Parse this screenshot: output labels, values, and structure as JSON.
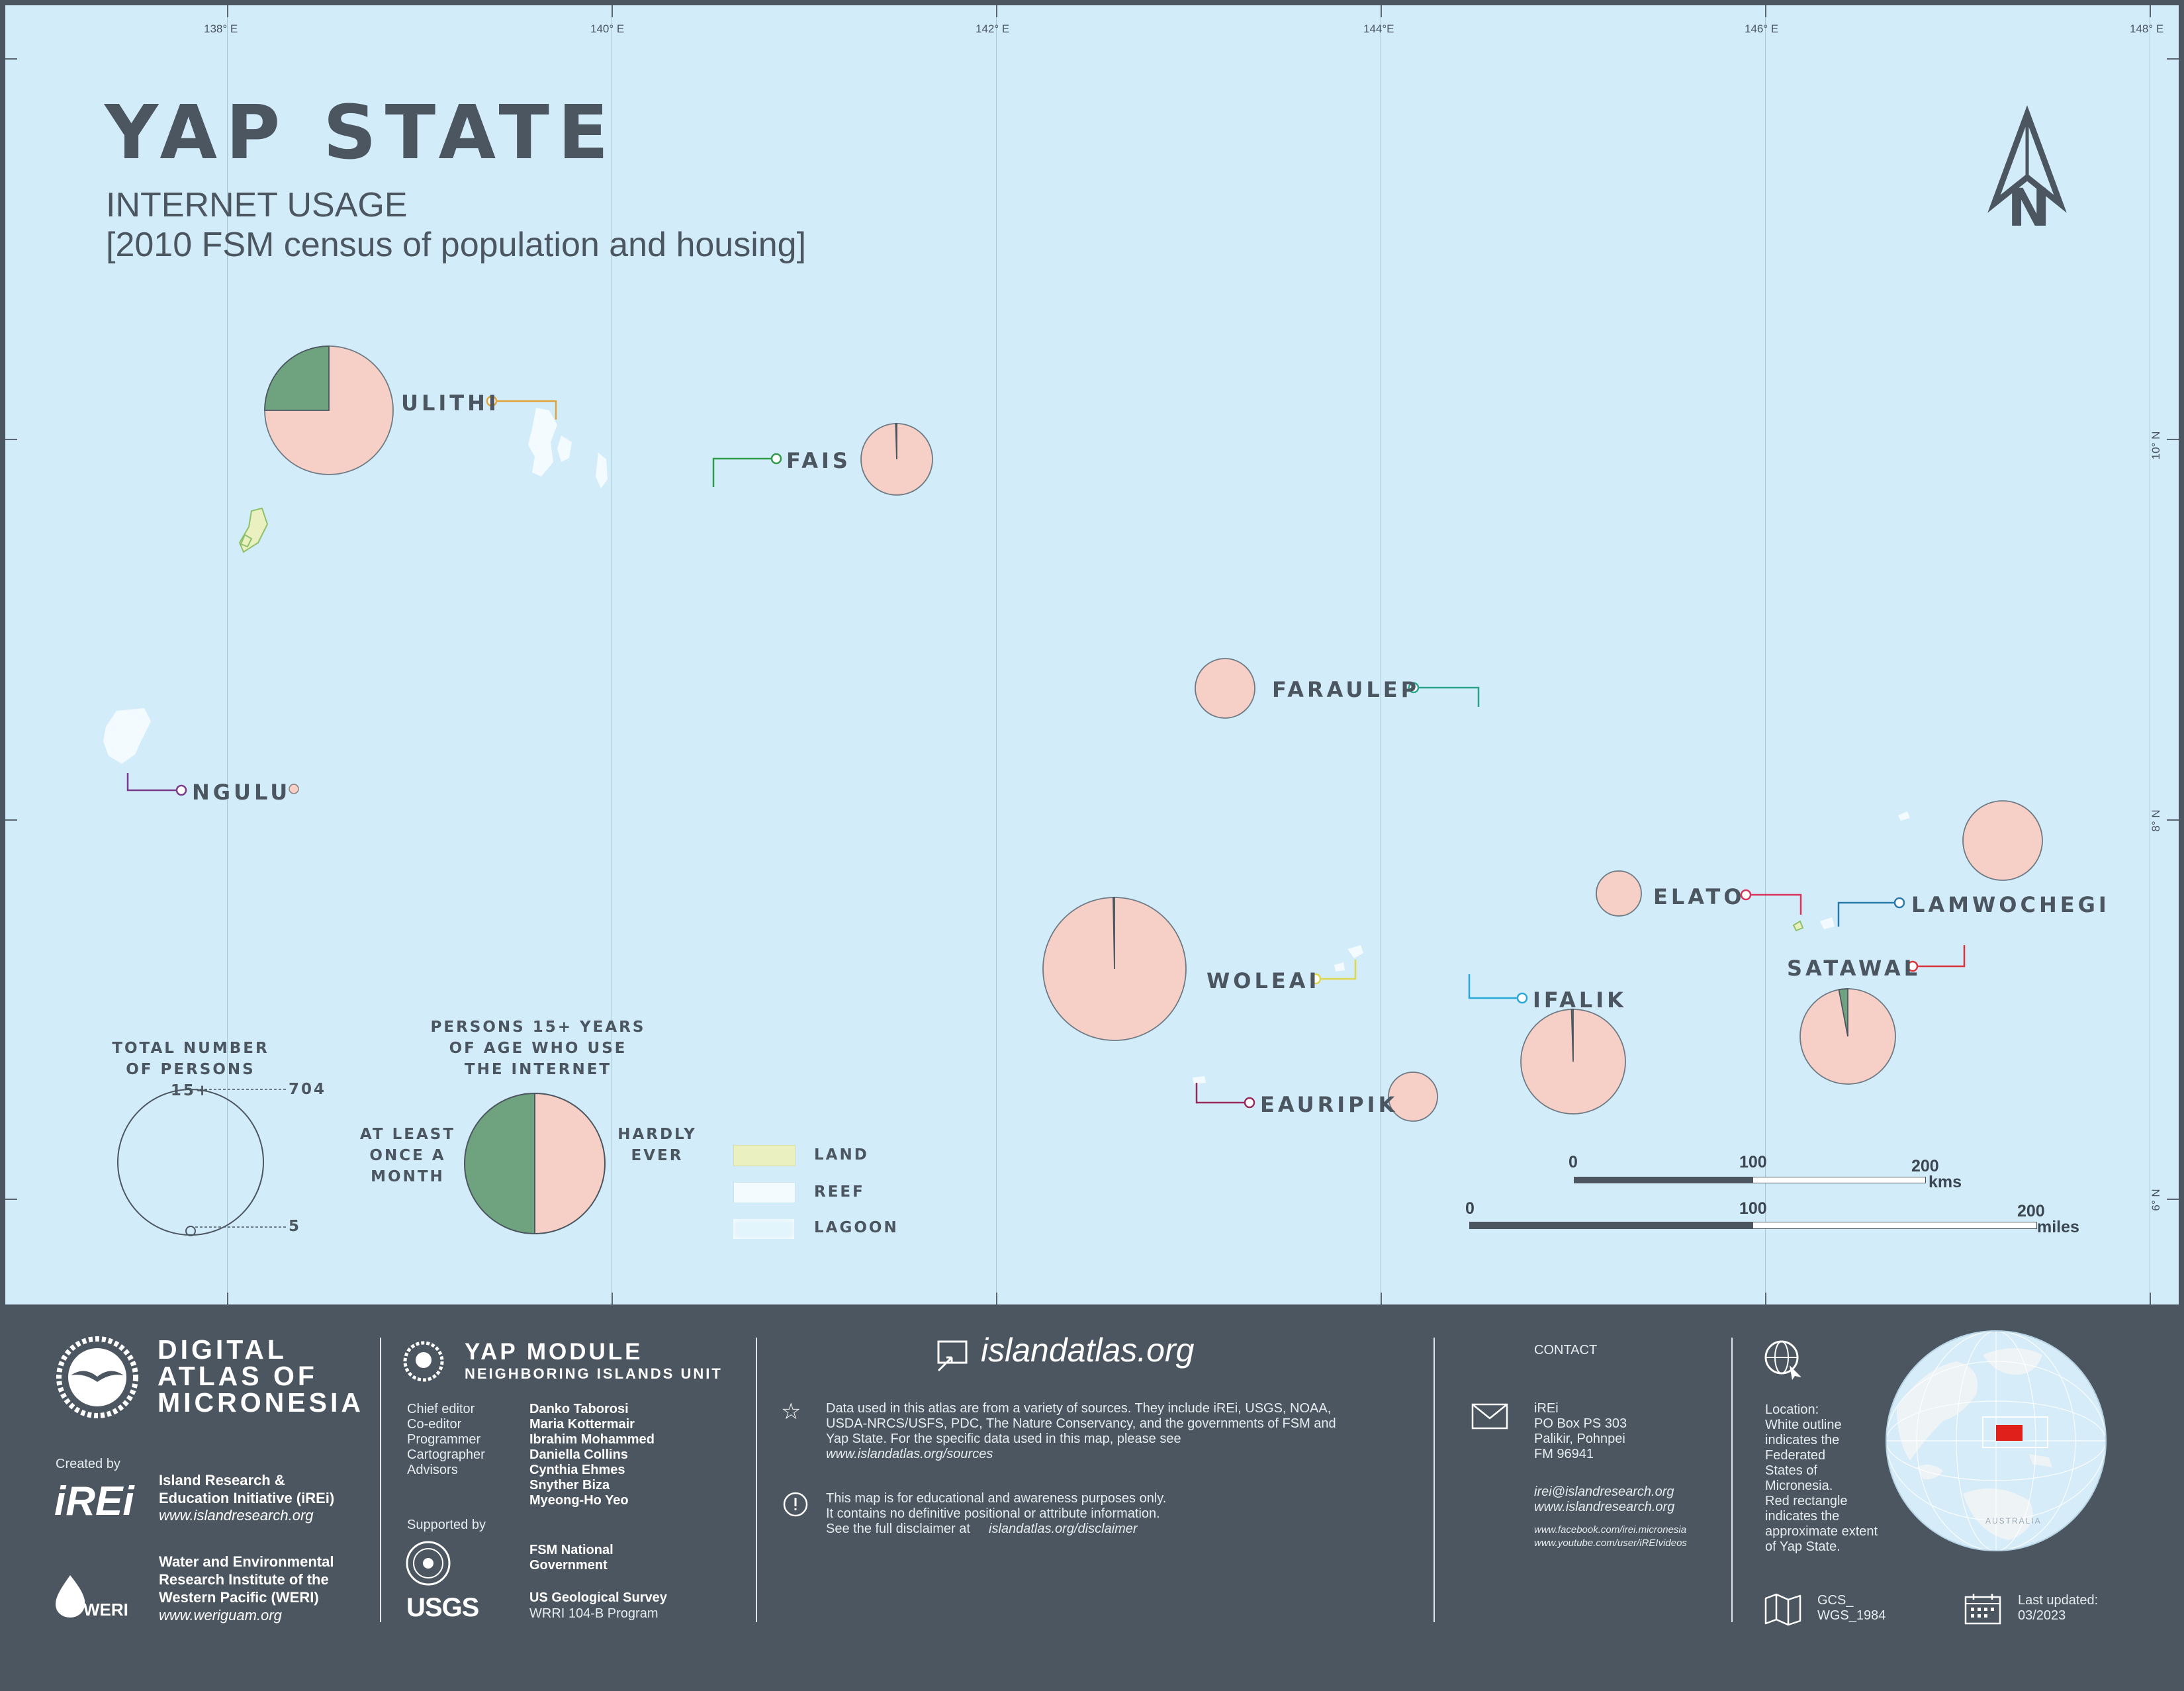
{
  "map": {
    "title": "YAP STATE",
    "subtitle": "INTERNET USAGE",
    "source_line": "[2010 FSM census of population and housing]",
    "north_label": "N",
    "longitudes": [
      "138° E",
      "140° E",
      "142° E",
      "144°E",
      "146° E",
      "148° E"
    ],
    "latitudes": [
      "10° N",
      "8° N",
      "6° N"
    ],
    "islands": [
      {
        "name": "ULITHI",
        "at_least_monthly_pct": 25,
        "leader_color": "#e0a43a"
      },
      {
        "name": "FAIS",
        "at_least_monthly_pct": 0.5,
        "leader_color": "#2e9a4a"
      },
      {
        "name": "FARAULEP",
        "at_least_monthly_pct": 0,
        "leader_color": "#2aa58a"
      },
      {
        "name": "NGULU",
        "at_least_monthly_pct": 0,
        "leader_color": "#7a3a8a"
      },
      {
        "name": "ELATO",
        "at_least_monthly_pct": 0,
        "leader_color": "#d8345a"
      },
      {
        "name": "LAMWOCHEGI",
        "at_least_monthly_pct": 0,
        "leader_color": "#2a7aa8"
      },
      {
        "name": "SATAWAL",
        "at_least_monthly_pct": 3,
        "leader_color": "#d8343a"
      },
      {
        "name": "WOLEAI",
        "at_least_monthly_pct": 0.3,
        "leader_color": "#e2d64a"
      },
      {
        "name": "IFALIK",
        "at_least_monthly_pct": 0.5,
        "leader_color": "#2aa8d8"
      },
      {
        "name": "EAURIPIK",
        "at_least_monthly_pct": 0,
        "leader_color": "#9a2a5a"
      }
    ],
    "legend": {
      "total_title": "TOTAL NUMBER OF PERSONS 15+",
      "total_max": "704",
      "total_min": "5",
      "usage_title": "PERSONS 15+ YEARS OF AGE WHO USE THE INTERNET",
      "at_least_label": "AT LEAST ONCE A MONTH",
      "hardly_label": "HARDLY EVER",
      "land_label": "LAND",
      "reef_label": "REEF",
      "lagoon_label": "LAGOON"
    },
    "scale": {
      "km_ticks": [
        "0",
        "100",
        "200"
      ],
      "km_unit": "kms",
      "mi_ticks": [
        "0",
        "100",
        "200"
      ],
      "mi_unit": "miles"
    },
    "colors": {
      "ocean": "#d2ecfa",
      "at_least_monthly": "#6fa27f",
      "hardly_ever": "#f6cfc6",
      "land": "#eaf0c0",
      "reef": "#f4fbfe",
      "footer": "#4b5660"
    }
  },
  "footer": {
    "brand": [
      "DIGITAL",
      "ATLAS OF",
      "MICRONESIA"
    ],
    "created_by": "Created by",
    "irei_logo": "iREi",
    "irei_name": [
      "Island Research &",
      "Education Initiative (iREi)"
    ],
    "irei_url": "www.islandresearch.org",
    "weri_logo": "WERI",
    "weri_name": [
      "Water and Environmental",
      "Research Institute of the",
      "Western Pacific (WERI)"
    ],
    "weri_url": "www.weriguam.org",
    "module_title": "YAP MODULE",
    "module_subtitle": "NEIGHBORING ISLANDS UNIT",
    "roles": [
      "Chief editor",
      "Co-editor",
      "Programmer",
      "Cartographer",
      "Advisors"
    ],
    "people": [
      "Danko Taborosi",
      "Maria Kottermair",
      "Ibrahim Mohammed",
      "Daniella Collins",
      "Cynthia Ehmes",
      "Snyther Biza",
      "Myeong-Ho Yeo"
    ],
    "supported_by": "Supported by",
    "fsm_gov": [
      "FSM National",
      "Government"
    ],
    "usgs_logo": "USGS",
    "usgs_name": "US Geological Survey",
    "usgs_program": "WRRI 104-B Program",
    "site": "islandatlas.org",
    "data_note": [
      "Data used in this atlas are from a variety of sources. They include iREi, USGS, NOAA,",
      "USDA-NRCS/USFS, PDC, The Nature Conservancy, and the governments of FSM and",
      "Yap State. For the specific data used in this map, please see"
    ],
    "data_url": "www.islandatlas.org/sources",
    "disclaimer": [
      "This map is for educational and awareness purposes only.",
      "It contains no definitive positional or attribute information."
    ],
    "disclaimer_pre": "See the full disclaimer at",
    "disclaimer_url": "islandatlas.org/disclaimer",
    "contact_title": "CONTACT",
    "contact_lines": [
      "iREi",
      "PO Box PS 303",
      "Palikir, Pohnpei",
      "FM 96941"
    ],
    "contact_email": "irei@islandresearch.org",
    "contact_web": "www.islandresearch.org",
    "contact_facebook": "www.facebook.com/irei.micronesia",
    "contact_youtube": "www.youtube.com/user/iREIvideos",
    "location_text": [
      "Location:",
      "White outline",
      "indicates the",
      "Federated",
      "States of",
      "Micronesia.",
      "Red rectangle",
      "indicates the",
      "approximate extent",
      "of Yap State."
    ],
    "projection": [
      "GCS_",
      "WGS_1984"
    ],
    "updated": [
      "Last updated:",
      "03/2023"
    ],
    "globe_label": "AUSTRALIA"
  }
}
